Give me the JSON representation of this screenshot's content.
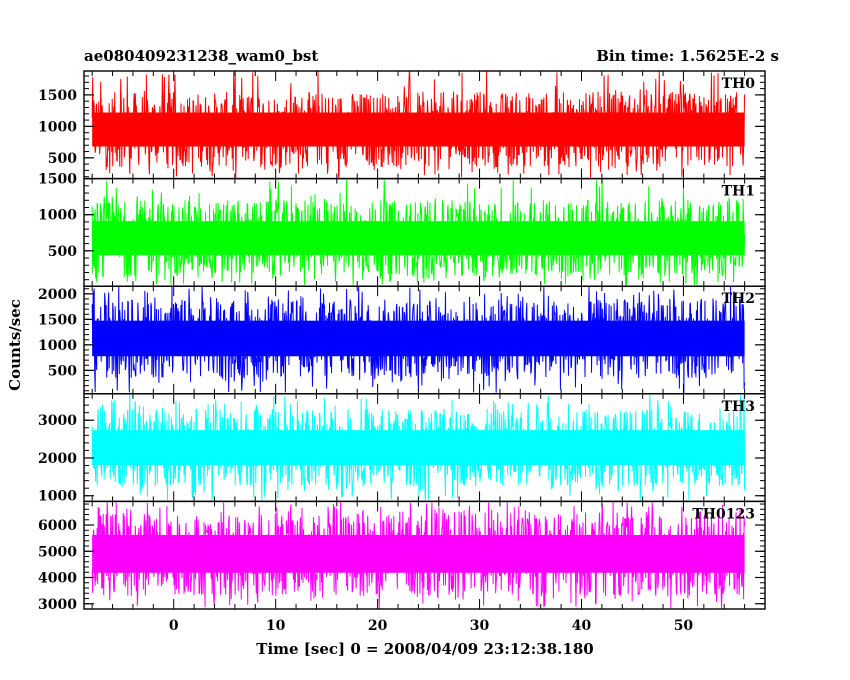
{
  "header": {
    "title": "ae080409231238_wam0_bst",
    "bin_time": "Bin time: 1.5625E-2 s"
  },
  "chart_data": {
    "type": "line",
    "title": "ae080409231238_wam0_bst",
    "xlabel": "Time [sec] 0 = 2008/04/09 23:12:38.180",
    "ylabel": "Counts/sec",
    "xlim": [
      -8.8,
      58
    ],
    "x_ticks": [
      0,
      10,
      20,
      30,
      40,
      50
    ],
    "data_x_range": [
      -8,
      56
    ],
    "panels": [
      {
        "name": "TH0",
        "color": "#ff0000",
        "ylim": [
          170,
          1880
        ],
        "y_ticks": [
          500,
          1000,
          1500
        ],
        "y_tick_labels": [
          "500",
          "1000",
          "1500"
        ],
        "typical_range": [
          350,
          1550
        ],
        "mean": 900
      },
      {
        "name": "TH1",
        "color": "#00ff00",
        "ylim": [
          10,
          1500
        ],
        "y_ticks": [
          500,
          1000,
          1500
        ],
        "y_tick_labels": [
          "500",
          "1000",
          "1500"
        ],
        "typical_range": [
          150,
          1200
        ],
        "mean": 650
      },
      {
        "name": "TH2",
        "color": "#0000ff",
        "ylim": [
          40,
          2150
        ],
        "y_ticks": [
          500,
          1000,
          1500,
          2000
        ],
        "y_tick_labels": [
          "500",
          "1000",
          "1500",
          "2000"
        ],
        "typical_range": [
          350,
          1900
        ],
        "mean": 1100
      },
      {
        "name": "TH3",
        "color": "#00ffff",
        "ylim": [
          850,
          3700
        ],
        "y_ticks": [
          1000,
          2000,
          3000
        ],
        "y_tick_labels": [
          "1000",
          "2000",
          "3000"
        ],
        "typical_range": [
          1250,
          3300
        ],
        "mean": 2250
      },
      {
        "name": "TH0123",
        "color": "#ff00ff",
        "ylim": [
          2800,
          6900
        ],
        "y_ticks": [
          3000,
          4000,
          5000,
          6000
        ],
        "y_tick_labels": [
          "3000",
          "4000",
          "5000",
          "6000"
        ],
        "typical_range": [
          3300,
          6500
        ],
        "mean": 4800
      }
    ],
    "grid": false,
    "legend": "none"
  }
}
